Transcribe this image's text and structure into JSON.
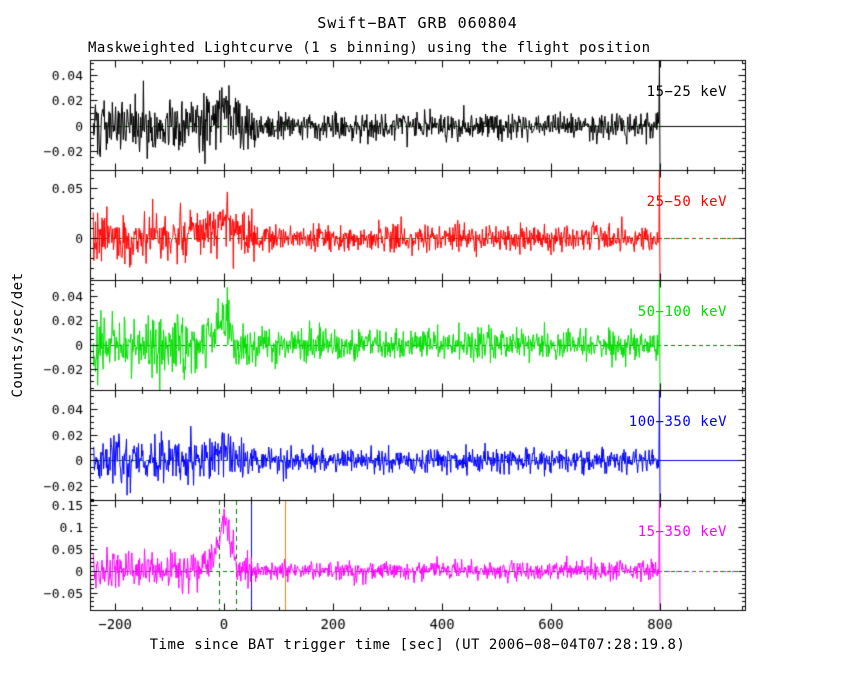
{
  "chart_data": {
    "type": "line",
    "title": "Swift−BAT GRB 060804",
    "subtitle": "Maskweighted Lightcurve (1 s binning) using the flight position",
    "ylabel": "Counts/sec/det",
    "xlabel": "Time since BAT trigger time [sec] (UT 2006−08−04T07:28:19.8)",
    "x_range": [
      -246,
      956
    ],
    "x_ticks": [
      {
        "v": -200,
        "label": "−200"
      },
      {
        "v": 0,
        "label": "0"
      },
      {
        "v": 200,
        "label": "200"
      },
      {
        "v": 400,
        "label": "400"
      },
      {
        "v": 600,
        "label": "600"
      },
      {
        "v": 800,
        "label": "800"
      }
    ],
    "x_minor_step": 50,
    "data_start_sec": -240,
    "data_end_sec": 800,
    "binning_sec": 1,
    "sigma_transition_sec": 50,
    "zero_line": {
      "color": "#008000",
      "dash": [
        4,
        3
      ]
    },
    "markers": [
      {
        "time": -10,
        "color": "#007700",
        "style": "dashed"
      },
      {
        "time": 22,
        "color": "#007700",
        "style": "dashed"
      },
      {
        "time": 50,
        "color": "#0000ff",
        "style": "solid"
      },
      {
        "time": 112,
        "color": "#ff8000",
        "style": "solid"
      }
    ],
    "panels": [
      {
        "label": "15−25 keV",
        "color": "#000000",
        "ylim": [
          -0.035,
          0.052
        ],
        "y_minor_step": 0.005,
        "yticks": [
          {
            "v": -0.02,
            "label": "−0.02"
          },
          {
            "v": 0,
            "label": "0"
          },
          {
            "v": 0.02,
            "label": "0.02"
          },
          {
            "v": 0.04,
            "label": "0.04"
          }
        ],
        "noise_sigma_early": 0.011,
        "noise_sigma_late": 0.0055,
        "burst_amplitude": 0.013,
        "end_spike": 0.5,
        "zero_right": "solid",
        "seed": 101
      },
      {
        "label": "25−50 keV",
        "color": "#ff0000",
        "ylim": [
          -0.042,
          0.068
        ],
        "y_minor_step": 0.01,
        "yticks": [
          {
            "v": 0,
            "label": "0"
          },
          {
            "v": 0.05,
            "label": "0.05"
          }
        ],
        "noise_sigma_early": 0.013,
        "noise_sigma_late": 0.0065,
        "burst_amplitude": 0.022,
        "end_spike": 0.5,
        "zero_right": "dashed",
        "seed": 202
      },
      {
        "label": "50−100 keV",
        "color": "#00dd00",
        "ylim": [
          -0.037,
          0.053
        ],
        "y_minor_step": 0.005,
        "yticks": [
          {
            "v": -0.02,
            "label": "−0.02"
          },
          {
            "v": 0,
            "label": "0"
          },
          {
            "v": 0.02,
            "label": "0.02"
          },
          {
            "v": 0.04,
            "label": "0.04"
          }
        ],
        "noise_sigma_early": 0.012,
        "noise_sigma_late": 0.006,
        "burst_amplitude": 0.016,
        "end_spike": 0.5,
        "zero_right": "none",
        "seed": 303
      },
      {
        "label": "100−350 keV",
        "color": "#0000ff",
        "ylim": [
          -0.031,
          0.055
        ],
        "y_minor_step": 0.005,
        "yticks": [
          {
            "v": -0.02,
            "label": "−0.02"
          },
          {
            "v": 0,
            "label": "0"
          },
          {
            "v": 0.02,
            "label": "0.02"
          },
          {
            "v": 0.04,
            "label": "0.04"
          }
        ],
        "noise_sigma_early": 0.009,
        "noise_sigma_late": 0.005,
        "burst_amplitude": 0.006,
        "end_spike": 0.5,
        "zero_right": "solid",
        "seed": 404
      },
      {
        "label": "15−350 keV",
        "color": "#ff00ff",
        "ylim": [
          -0.09,
          0.162
        ],
        "y_minor_step": 0.01,
        "yticks": [
          {
            "v": -0.05,
            "label": "−0.05"
          },
          {
            "v": 0,
            "label": "0"
          },
          {
            "v": 0.05,
            "label": "0.05"
          },
          {
            "v": 0.1,
            "label": "0.1"
          },
          {
            "v": 0.15,
            "label": "0.15"
          }
        ],
        "noise_sigma_early": 0.022,
        "noise_sigma_late": 0.011,
        "burst_amplitude": 0.095,
        "end_spike": 0.5,
        "zero_right": "dashed",
        "seed": 505
      }
    ]
  }
}
